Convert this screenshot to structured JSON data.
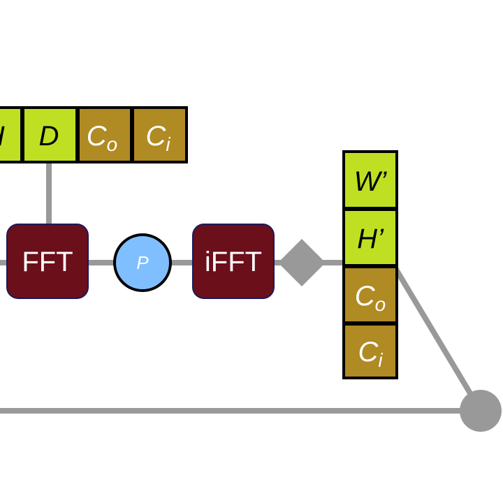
{
  "top_tiles": [
    {
      "label": "H"
    },
    {
      "label": "D"
    },
    {
      "label": "C",
      "sub": "o"
    },
    {
      "label": "C",
      "sub": "i"
    }
  ],
  "nodes": {
    "fft": "FFT",
    "p": "P",
    "ifft": "iFFT"
  },
  "right_tiles": [
    {
      "label": "W’"
    },
    {
      "label": "H’"
    },
    {
      "label": "C",
      "sub": "o"
    },
    {
      "label": "C",
      "sub": "i"
    }
  ]
}
